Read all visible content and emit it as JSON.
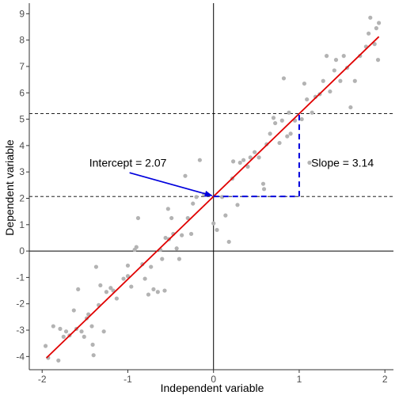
{
  "chart_data": {
    "type": "scatter",
    "xlabel": "Independent variable",
    "ylabel": "Dependent variable",
    "xlim": [
      -2.15,
      2.1
    ],
    "ylim": [
      -4.5,
      9.4
    ],
    "x_ticks": [
      -2,
      -1,
      0,
      1,
      2
    ],
    "y_ticks": [
      -4,
      -3,
      -2,
      -1,
      0,
      1,
      2,
      3,
      4,
      5,
      6,
      7,
      8,
      9
    ],
    "x_tick_labels": [
      "-2",
      "-1",
      "0",
      "1",
      "2"
    ],
    "y_tick_labels": [
      "-4",
      "-3",
      "-2",
      "-1",
      "0",
      "1",
      "2",
      "3",
      "4",
      "5",
      "6",
      "7",
      "8",
      "9"
    ],
    "grid": false,
    "regression_line": {
      "intercept": 2.07,
      "slope": 3.14,
      "x_range": [
        -1.95,
        1.93
      ],
      "color": "#e00000"
    },
    "reference_lines": {
      "horizontal": [
        2.07,
        5.21
      ],
      "x_axis_y": 0,
      "y_axis_x": 0
    },
    "slope_triangle": {
      "x0": 0,
      "x1": 1,
      "y0": 2.07,
      "y1": 5.21,
      "color": "#0000dd"
    },
    "annotations": {
      "intercept_label": "Intercept = 2.07",
      "slope_label": "Slope = 3.14",
      "arrow_from": [
        -0.98,
        2.97
      ],
      "arrow_to": [
        0.0,
        2.07
      ],
      "intercept_label_at": [
        -1.45,
        3.35
      ],
      "slope_label_at": [
        1.14,
        3.35
      ]
    },
    "point_color": "#b3b3b3",
    "points": [
      {
        "x": -1.96,
        "y": -3.6
      },
      {
        "x": -1.93,
        "y": -4.05
      },
      {
        "x": -1.87,
        "y": -2.85
      },
      {
        "x": -1.81,
        "y": -4.15
      },
      {
        "x": -1.79,
        "y": -2.95
      },
      {
        "x": -1.75,
        "y": -3.25
      },
      {
        "x": -1.72,
        "y": -3.05
      },
      {
        "x": -1.68,
        "y": -3.2
      },
      {
        "x": -1.63,
        "y": -2.25
      },
      {
        "x": -1.6,
        "y": -2.95
      },
      {
        "x": -1.58,
        "y": -1.45
      },
      {
        "x": -1.54,
        "y": -3.05
      },
      {
        "x": -1.51,
        "y": -3.25
      },
      {
        "x": -1.48,
        "y": -2.55
      },
      {
        "x": -1.46,
        "y": -2.4
      },
      {
        "x": -1.42,
        "y": -2.85
      },
      {
        "x": -1.41,
        "y": -3.55
      },
      {
        "x": -1.4,
        "y": -3.95
      },
      {
        "x": -1.37,
        "y": -0.6
      },
      {
        "x": -1.34,
        "y": -2.05
      },
      {
        "x": -1.32,
        "y": -1.3
      },
      {
        "x": -1.28,
        "y": -3.05
      },
      {
        "x": -1.25,
        "y": -1.55
      },
      {
        "x": -1.2,
        "y": -1.4
      },
      {
        "x": -1.17,
        "y": -1.5
      },
      {
        "x": -1.13,
        "y": -1.8
      },
      {
        "x": -1.05,
        "y": -1.05
      },
      {
        "x": -1.0,
        "y": -0.95
      },
      {
        "x": -1.0,
        "y": -0.55
      },
      {
        "x": -0.96,
        "y": -1.35
      },
      {
        "x": -0.92,
        "y": 0.05
      },
      {
        "x": -0.9,
        "y": 0.15
      },
      {
        "x": -0.88,
        "y": 1.25
      },
      {
        "x": -0.83,
        "y": -0.5
      },
      {
        "x": -0.8,
        "y": -1.05
      },
      {
        "x": -0.76,
        "y": -1.65
      },
      {
        "x": -0.73,
        "y": -0.6
      },
      {
        "x": -0.7,
        "y": -1.45
      },
      {
        "x": -0.65,
        "y": -1.55
      },
      {
        "x": -0.62,
        "y": 0.05
      },
      {
        "x": -0.6,
        "y": -0.3
      },
      {
        "x": -0.57,
        "y": -1.5
      },
      {
        "x": -0.56,
        "y": 0.5
      },
      {
        "x": -0.53,
        "y": 1.6
      },
      {
        "x": -0.52,
        "y": 0.45
      },
      {
        "x": -0.49,
        "y": 1.25
      },
      {
        "x": -0.47,
        "y": 0.65
      },
      {
        "x": -0.43,
        "y": 0.1
      },
      {
        "x": -0.4,
        "y": -0.3
      },
      {
        "x": -0.37,
        "y": 0.6
      },
      {
        "x": -0.33,
        "y": 2.85
      },
      {
        "x": -0.3,
        "y": 1.25
      },
      {
        "x": -0.26,
        "y": 0.65
      },
      {
        "x": -0.24,
        "y": 1.8
      },
      {
        "x": -0.2,
        "y": 2.05
      },
      {
        "x": -0.16,
        "y": 3.45
      },
      {
        "x": -0.11,
        "y": 2.15
      },
      {
        "x": 0.0,
        "y": 1.05
      },
      {
        "x": 0.04,
        "y": 0.8
      },
      {
        "x": 0.1,
        "y": 2.05
      },
      {
        "x": 0.14,
        "y": 1.35
      },
      {
        "x": 0.18,
        "y": 0.35
      },
      {
        "x": 0.22,
        "y": 2.75
      },
      {
        "x": 0.23,
        "y": 3.4
      },
      {
        "x": 0.28,
        "y": 1.75
      },
      {
        "x": 0.31,
        "y": 3.35
      },
      {
        "x": 0.35,
        "y": 3.45
      },
      {
        "x": 0.4,
        "y": 3.2
      },
      {
        "x": 0.43,
        "y": 3.55
      },
      {
        "x": 0.48,
        "y": 3.75
      },
      {
        "x": 0.53,
        "y": 3.55
      },
      {
        "x": 0.58,
        "y": 2.55
      },
      {
        "x": 0.59,
        "y": 2.35
      },
      {
        "x": 0.62,
        "y": 4.05
      },
      {
        "x": 0.66,
        "y": 4.45
      },
      {
        "x": 0.7,
        "y": 5.05
      },
      {
        "x": 0.72,
        "y": 4.85
      },
      {
        "x": 0.77,
        "y": 4.1
      },
      {
        "x": 0.8,
        "y": 4.95
      },
      {
        "x": 0.82,
        "y": 6.55
      },
      {
        "x": 0.86,
        "y": 4.35
      },
      {
        "x": 0.88,
        "y": 5.25
      },
      {
        "x": 0.9,
        "y": 4.45
      },
      {
        "x": 0.95,
        "y": 4.95
      },
      {
        "x": 1.03,
        "y": 5.0
      },
      {
        "x": 1.06,
        "y": 6.35
      },
      {
        "x": 1.09,
        "y": 5.75
      },
      {
        "x": 1.12,
        "y": 3.35
      },
      {
        "x": 1.15,
        "y": 5.25
      },
      {
        "x": 1.19,
        "y": 5.85
      },
      {
        "x": 1.24,
        "y": 5.95
      },
      {
        "x": 1.28,
        "y": 6.45
      },
      {
        "x": 1.32,
        "y": 7.4
      },
      {
        "x": 1.36,
        "y": 6.05
      },
      {
        "x": 1.41,
        "y": 6.85
      },
      {
        "x": 1.43,
        "y": 7.25
      },
      {
        "x": 1.48,
        "y": 6.45
      },
      {
        "x": 1.52,
        "y": 7.4
      },
      {
        "x": 1.56,
        "y": 6.95
      },
      {
        "x": 1.6,
        "y": 5.45
      },
      {
        "x": 1.65,
        "y": 6.45
      },
      {
        "x": 1.71,
        "y": 7.4
      },
      {
        "x": 1.78,
        "y": 7.75
      },
      {
        "x": 1.81,
        "y": 8.25
      },
      {
        "x": 1.83,
        "y": 8.85
      },
      {
        "x": 1.88,
        "y": 7.85
      },
      {
        "x": 1.9,
        "y": 8.45
      },
      {
        "x": 1.92,
        "y": 7.25
      },
      {
        "x": 1.93,
        "y": 8.65
      }
    ]
  }
}
